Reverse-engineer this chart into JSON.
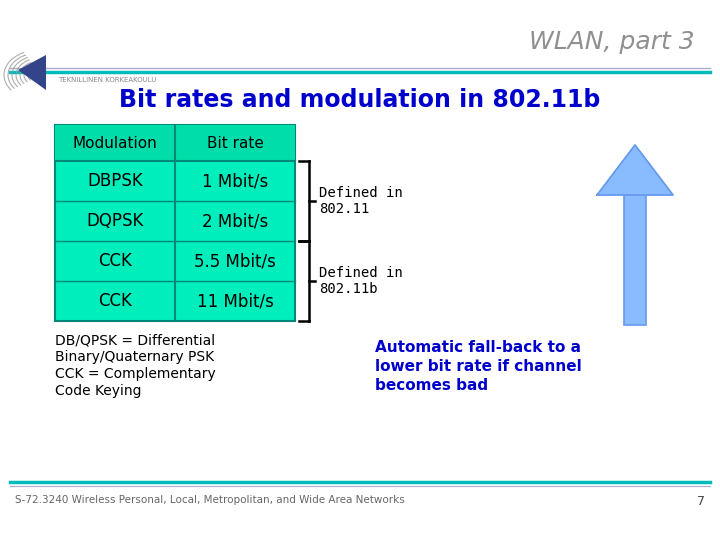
{
  "title": "WLAN, part 3",
  "subtitle": "Bit rates and modulation in 802.11b",
  "subtitle_color": "#0000CC",
  "title_color": "#909090",
  "bg_color": "#FFFFFF",
  "table_bg": "#00EEBB",
  "table_header_bg": "#00DDAA",
  "table_border": "#008877",
  "col_headers": [
    "Modulation",
    "Bit rate"
  ],
  "rows": [
    [
      "DBPSK",
      "1 Mbit/s"
    ],
    [
      "DQPSK",
      "2 Mbit/s"
    ],
    [
      "CCK",
      "5.5 Mbit/s"
    ],
    [
      "CCK",
      "11 Mbit/s"
    ]
  ],
  "bracket_label_1": "Defined in\n802.11",
  "bracket_label_2": "Defined in\n802.11b",
  "note_line1": "DB/QPSK = Differential",
  "note_line2": "Binary/Quaternary PSK",
  "note_line3": "CCK = Complementary",
  "note_line4": "Code Keying",
  "arrow_text_line1": "Automatic fall-back to a",
  "arrow_text_line2": "lower bit rate if channel",
  "arrow_text_line3": "becomes bad",
  "arrow_text_color": "#0000CC",
  "footer_text": "S-72.3240 Wireless Personal, Local, Metropolitan, and Wide Area Networks",
  "footer_num": "7",
  "header_line_teal": "#00BBBB",
  "header_line_gray": "#AAAACC",
  "footer_line_teal": "#00BBBB",
  "footer_line_gray": "#AAAACC",
  "arrow_fill": "#88BBFF",
  "arrow_outline": "#6699EE"
}
